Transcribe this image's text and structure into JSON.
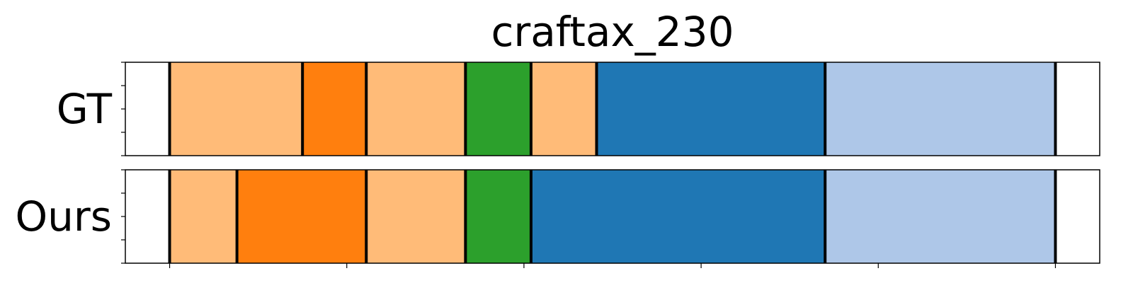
{
  "chart_data": {
    "type": "bar",
    "title": "craftax_230",
    "x_range": [
      -25,
      525
    ],
    "y_ticks": [
      0,
      0.25,
      0.5,
      0.75,
      1
    ],
    "x_ticks": [
      0,
      100,
      200,
      300,
      400,
      500
    ],
    "grid": false,
    "colors": {
      "light_orange": "#ffbb78",
      "orange": "#ff7f0e",
      "green": "#2ca02c",
      "blue": "#1f77b4",
      "light_blue": "#aec7e8",
      "boundary": "#000000"
    },
    "rows": [
      {
        "label": "GT",
        "segments": [
          {
            "start": 0,
            "end": 75,
            "color": "light_orange"
          },
          {
            "start": 75,
            "end": 111,
            "color": "orange"
          },
          {
            "start": 111,
            "end": 167,
            "color": "light_orange"
          },
          {
            "start": 167,
            "end": 204,
            "color": "green"
          },
          {
            "start": 204,
            "end": 241,
            "color": "light_orange"
          },
          {
            "start": 241,
            "end": 370,
            "color": "blue"
          },
          {
            "start": 370,
            "end": 500,
            "color": "light_blue"
          }
        ]
      },
      {
        "label": "Ours",
        "segments": [
          {
            "start": 0,
            "end": 38,
            "color": "light_orange"
          },
          {
            "start": 38,
            "end": 111,
            "color": "orange"
          },
          {
            "start": 111,
            "end": 167,
            "color": "light_orange"
          },
          {
            "start": 167,
            "end": 204,
            "color": "green"
          },
          {
            "start": 204,
            "end": 370,
            "color": "blue"
          },
          {
            "start": 370,
            "end": 500,
            "color": "light_blue"
          }
        ]
      }
    ]
  }
}
